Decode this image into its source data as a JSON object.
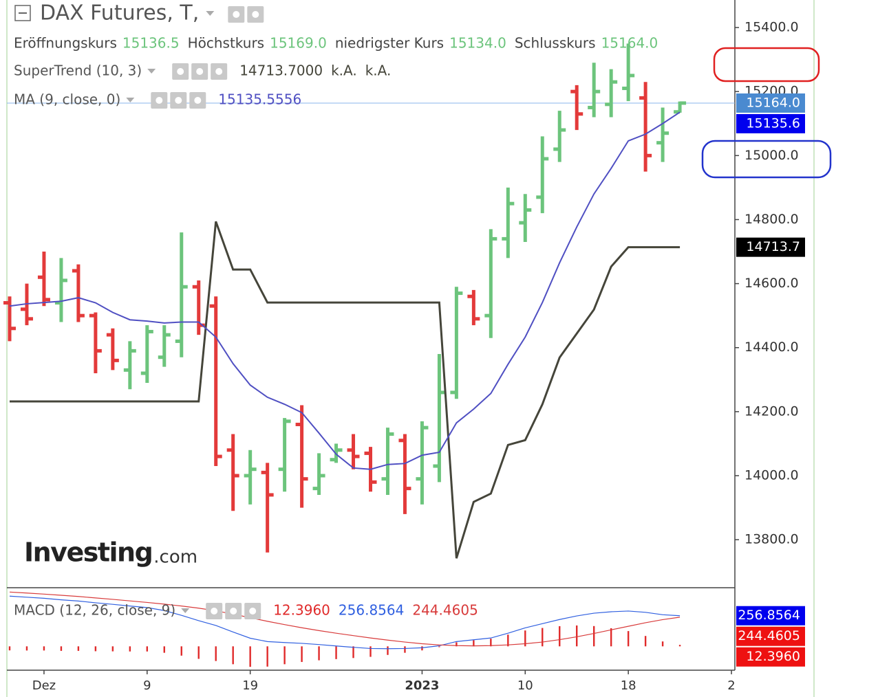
{
  "chart_data": [
    {
      "type": "ohlc",
      "title": "DAX Futures, T,",
      "x": [
        0,
        1,
        2,
        3,
        4,
        5,
        6,
        7,
        8,
        9,
        10,
        11,
        12,
        13,
        14,
        15,
        16,
        17,
        18,
        19,
        20,
        21,
        22,
        23,
        24,
        25,
        26,
        27,
        28,
        29,
        30,
        31,
        32,
        33,
        34,
        35,
        36,
        37,
        38,
        39
      ],
      "xlim": [
        -0.16,
        42.2
      ],
      "xticks": [
        {
          "value": 2,
          "label": "Dez"
        },
        {
          "value": 8,
          "label": "9"
        },
        {
          "value": 14,
          "label": "19"
        },
        {
          "value": 24,
          "label": "2023",
          "major": true
        },
        {
          "value": 30,
          "label": "10"
        },
        {
          "value": 36,
          "label": "18"
        },
        {
          "value": 42,
          "label": "2"
        }
      ],
      "ylim": [
        13650,
        15486
      ],
      "yticks": [
        {
          "value": 13800,
          "label": "13800.0"
        },
        {
          "value": 14000,
          "label": "14000.0"
        },
        {
          "value": 14200,
          "label": "14200.0"
        },
        {
          "value": 14400,
          "label": "14400.0"
        },
        {
          "value": 14600,
          "label": "14600.0"
        },
        {
          "value": 14800,
          "label": "14800.0"
        },
        {
          "value": 15000,
          "label": "15000.0"
        },
        {
          "value": 15200,
          "label": "15200.0"
        },
        {
          "value": 15400,
          "label": "15400.0"
        }
      ],
      "open": [
        14540,
        14520,
        14620,
        14540,
        14640,
        14500,
        14440,
        14330,
        14320,
        14370,
        14420,
        14590,
        14530,
        14080,
        14000,
        14010,
        14020,
        14160,
        13960,
        14050,
        14080,
        14070,
        13990,
        14110,
        13990,
        14030,
        14260,
        14560,
        14500,
        14740,
        14790,
        14870,
        15020,
        15200,
        15150,
        15160,
        15210,
        15180,
        15040,
        15136.5
      ],
      "high": [
        14560,
        14600,
        14700,
        14680,
        14660,
        14510,
        14460,
        14420,
        14470,
        14470,
        14760,
        14610,
        14560,
        14130,
        14080,
        14040,
        14180,
        14220,
        14070,
        14100,
        14130,
        14090,
        14150,
        14130,
        14170,
        14380,
        14590,
        14580,
        14770,
        14900,
        14880,
        15060,
        15140,
        15220,
        15290,
        15270,
        15350,
        15230,
        15150,
        15169
      ],
      "low": [
        14420,
        14470,
        14530,
        14480,
        14480,
        14320,
        14330,
        14270,
        14290,
        14340,
        14370,
        14440,
        14030,
        13890,
        13910,
        13760,
        13950,
        13900,
        13940,
        14040,
        14020,
        13950,
        13940,
        13880,
        13910,
        13980,
        14240,
        14470,
        14430,
        14680,
        14730,
        14820,
        14980,
        15080,
        15120,
        15120,
        15170,
        14950,
        14980,
        15134
      ],
      "close": [
        14460,
        14490,
        14550,
        14610,
        14500,
        14390,
        14360,
        14390,
        14450,
        14440,
        14590,
        14470,
        14060,
        14000,
        14020,
        13940,
        14170,
        13990,
        14000,
        14080,
        14060,
        13980,
        14130,
        13960,
        14150,
        14260,
        14570,
        14490,
        14740,
        14850,
        14830,
        14990,
        15080,
        15130,
        15200,
        15230,
        15250,
        15000,
        15070,
        15164
      ],
      "up_color": "#6cc47c",
      "down_color": "#e33a3a",
      "legend": [
        {
          "name": "Eröffnungskurs",
          "value": "15136.5"
        },
        {
          "name": "Höchstkurs",
          "value": "15169.0"
        },
        {
          "name": "niedrigster Kurs",
          "value": "15134.0"
        },
        {
          "name": "Schlusskurs",
          "value": "15164.0"
        }
      ],
      "series": [
        {
          "name": "SuperTrend (10, 3)",
          "color": "#45453a",
          "legend_values": [
            "14713.7000",
            "k.A.",
            "k.A."
          ],
          "values": [
            14232,
            14232,
            14232,
            14232,
            14232,
            14232,
            14232,
            14232,
            14232,
            14232,
            14232,
            14232,
            14794,
            14644,
            14644,
            14541,
            14541,
            14541,
            14541,
            14541,
            14541,
            14541,
            14541,
            14541,
            14541,
            14541,
            13742,
            13918,
            13944,
            14096,
            14111,
            14223,
            14369,
            14444,
            14519,
            14653,
            14713.7,
            14713.7,
            14713.7,
            14713.7
          ]
        },
        {
          "name": "MA (9, close, 0)",
          "color": "#4f4fc2",
          "legend_values": [
            "15135.5556"
          ],
          "values": [
            14530,
            14537,
            14541,
            14545,
            14556,
            14540,
            14510,
            14487,
            14483,
            14477,
            14480,
            14480,
            14433,
            14350,
            14283,
            14245,
            14223,
            14197,
            14133,
            14067,
            14024,
            14020,
            14035,
            14038,
            14064,
            14073,
            14165,
            14208,
            14257,
            14348,
            14433,
            14541,
            14665,
            14777,
            14880,
            14960,
            15046,
            15067,
            15100,
            15135.5556
          ]
        }
      ],
      "price_tags": [
        {
          "value": 15164,
          "label": "15164.0",
          "color": "#4a8ad0"
        },
        {
          "value": 15135.5556,
          "label": "15135.6",
          "color": "#0000ee"
        },
        {
          "value": 14713.7,
          "label": "14713.7",
          "color": "#000000"
        }
      ],
      "watermark": [
        "Investing",
        ".com"
      ]
    },
    {
      "type": "macd",
      "title": "MACD (12, 26, close, 9)",
      "x": [
        0,
        1,
        2,
        3,
        4,
        5,
        6,
        7,
        8,
        9,
        10,
        11,
        12,
        13,
        14,
        15,
        16,
        17,
        18,
        19,
        20,
        21,
        22,
        23,
        24,
        25,
        26,
        27,
        28,
        29,
        30,
        31,
        32,
        33,
        34,
        35,
        36,
        37,
        38,
        39
      ],
      "ylim": [
        -200,
        480
      ],
      "series": [
        {
          "kind": "histogram",
          "color": "#e02a2a",
          "value_label": "12.3960",
          "values": [
            -34,
            -35,
            -35,
            -38,
            -38,
            -41,
            -42,
            -43,
            -43,
            -54,
            -78,
            -105,
            -123,
            -150,
            -172,
            -170,
            -150,
            -131,
            -117,
            -107,
            -98,
            -88,
            -72,
            -54,
            -34,
            -7,
            34,
            51,
            64,
            98,
            133,
            154,
            169,
            175,
            170,
            152,
            128,
            87,
            41,
            12.396
          ]
        },
        {
          "kind": "line",
          "color": "#2f5fe0",
          "value_label": "256.8564",
          "values": [
            421,
            412,
            403,
            390,
            380,
            365,
            352,
            338,
            325,
            300,
            260,
            215,
            175,
            120,
            68,
            40,
            32,
            25,
            15,
            3,
            -8,
            -18,
            -20,
            -18,
            -12,
            5,
            40,
            55,
            70,
            110,
            155,
            190,
            225,
            255,
            278,
            290,
            296,
            285,
            265,
            256.8564
          ]
        },
        {
          "kind": "line",
          "color": "#d83a3a",
          "value_label": "244.4605",
          "values": [
            455,
            447,
            438,
            428,
            418,
            406,
            394,
            381,
            368,
            354,
            338,
            320,
            298,
            270,
            240,
            210,
            182,
            156,
            132,
            110,
            90,
            70,
            52,
            36,
            22,
            12,
            6,
            4,
            6,
            12,
            22,
            36,
            56,
            80,
            108,
            138,
            168,
            198,
            224,
            244.4605
          ]
        }
      ],
      "price_tags": [
        {
          "value": 256.8564,
          "label": "256.8564",
          "color": "#0000ee"
        },
        {
          "value": 244.4605,
          "label": "244.4605",
          "color": "#ee1111"
        },
        {
          "value": 12.396,
          "label": "12.3960",
          "color": "#ee1111"
        }
      ]
    }
  ]
}
